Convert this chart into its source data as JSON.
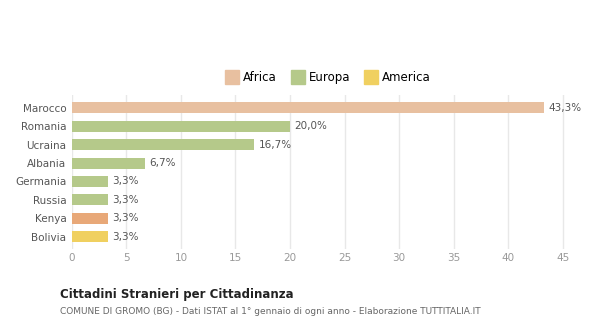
{
  "categories": [
    "Bolivia",
    "Kenya",
    "Russia",
    "Germania",
    "Albania",
    "Ucraina",
    "Romania",
    "Marocco"
  ],
  "values": [
    3.3,
    3.3,
    3.3,
    3.3,
    6.7,
    16.7,
    20.0,
    43.3
  ],
  "colors": [
    "#f0d060",
    "#e8a878",
    "#b5c98a",
    "#b5c98a",
    "#b5c98a",
    "#b5c98a",
    "#b5c98a",
    "#e8c0a0"
  ],
  "labels": [
    "3,3%",
    "3,3%",
    "3,3%",
    "3,3%",
    "6,7%",
    "16,7%",
    "20,0%",
    "43,3%"
  ],
  "legend": [
    {
      "label": "Africa",
      "color": "#e8c0a0"
    },
    {
      "label": "Europa",
      "color": "#b5c98a"
    },
    {
      "label": "America",
      "color": "#f0d060"
    }
  ],
  "xlim": [
    0,
    47
  ],
  "xticks": [
    0,
    5,
    10,
    15,
    20,
    25,
    30,
    35,
    40,
    45
  ],
  "title": "Cittadini Stranieri per Cittadinanza",
  "subtitle": "COMUNE DI GROMO (BG) - Dati ISTAT al 1° gennaio di ogni anno - Elaborazione TUTTITALIA.IT",
  "background_color": "#ffffff",
  "grid_color": "#e8e8e8",
  "bar_height": 0.6
}
